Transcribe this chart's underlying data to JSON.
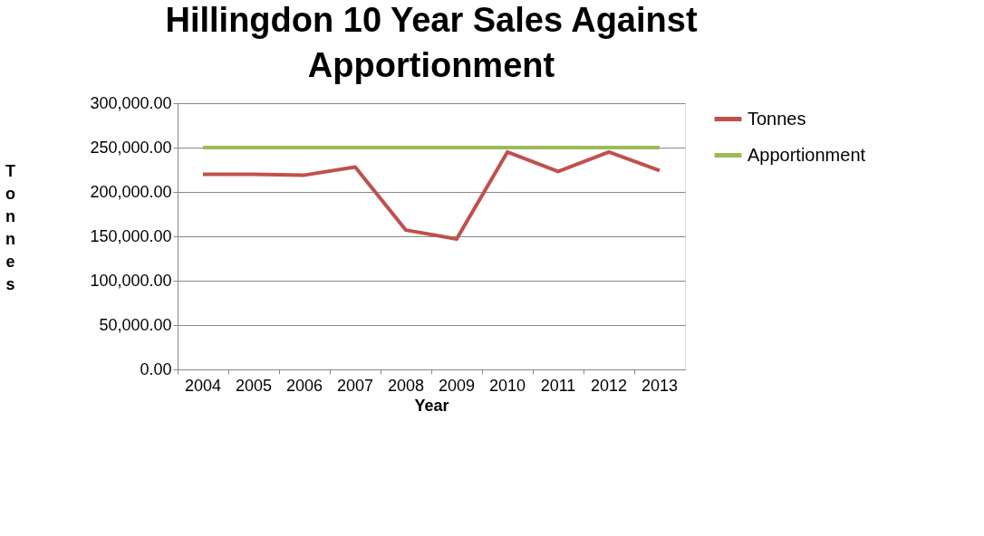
{
  "chart_data": {
    "type": "line",
    "title": "Hillingdon 10 Year Sales Against Apportionment",
    "xlabel": "Year",
    "ylabel": "Tonnes",
    "categories": [
      "2004",
      "2005",
      "2006",
      "2007",
      "2008",
      "2009",
      "2010",
      "2011",
      "2012",
      "2013"
    ],
    "series": [
      {
        "name": "Tonnes",
        "color": "#c0504d",
        "values": [
          220000,
          220000,
          219000,
          228000,
          157000,
          147000,
          245000,
          223000,
          245000,
          224000
        ]
      },
      {
        "name": "Apportionment",
        "color": "#9bbb59",
        "values": [
          250000,
          250000,
          250000,
          250000,
          250000,
          250000,
          250000,
          250000,
          250000,
          250000
        ]
      }
    ],
    "ylim": [
      0,
      300000
    ],
    "yticks": [
      {
        "value": 0,
        "label": "0.00"
      },
      {
        "value": 50000,
        "label": "50,000.00"
      },
      {
        "value": 100000,
        "label": "100,000.00"
      },
      {
        "value": 150000,
        "label": "150,000.00"
      },
      {
        "value": 200000,
        "label": "200,000.00"
      },
      {
        "value": 250000,
        "label": "250,000.00"
      },
      {
        "value": 300000,
        "label": "300,000.00"
      }
    ],
    "grid": "y",
    "legend": "right",
    "marker": "none",
    "line_style": "solid"
  }
}
